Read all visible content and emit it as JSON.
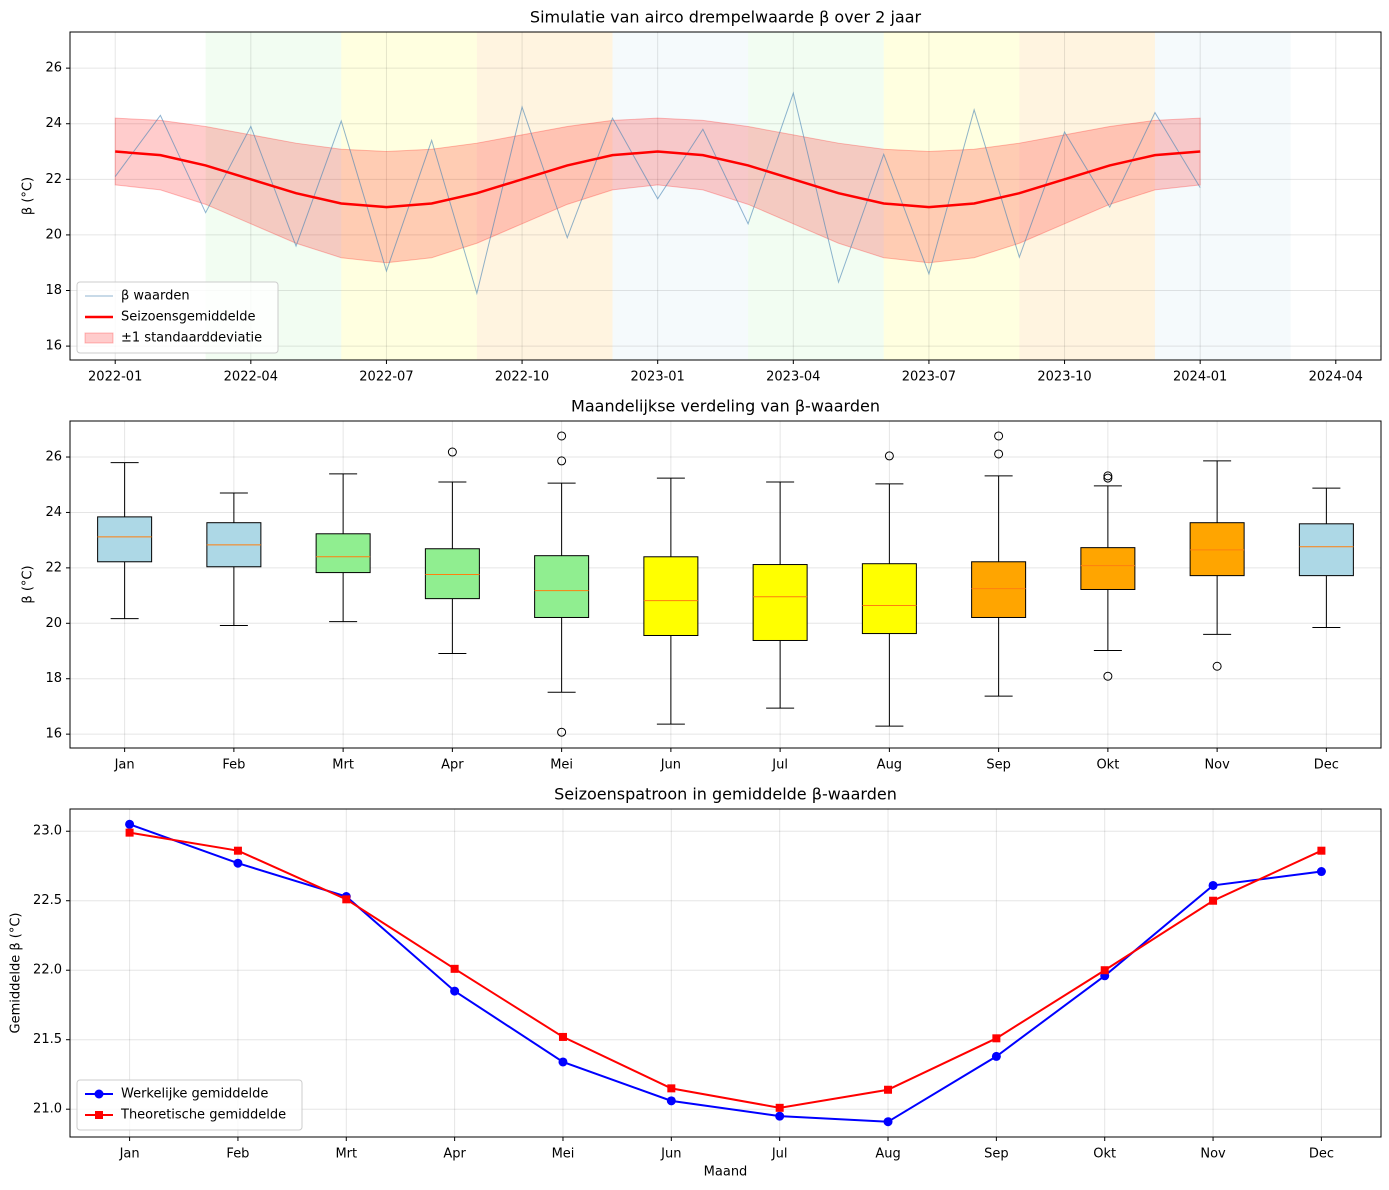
{
  "chart_data": [
    {
      "type": "line",
      "title": "Simulatie van airco drempelwaarde β over 2 jaar",
      "ylabel": "β (°C)",
      "x": [
        "2022-01",
        "2022-02",
        "2022-03",
        "2022-04",
        "2022-05",
        "2022-06",
        "2022-07",
        "2022-08",
        "2022-09",
        "2022-10",
        "2022-11",
        "2022-12",
        "2023-01",
        "2023-02",
        "2023-03",
        "2023-04",
        "2023-05",
        "2023-06",
        "2023-07",
        "2023-08",
        "2023-09",
        "2023-10",
        "2023-11",
        "2023-12",
        "2024-01"
      ],
      "series": [
        {
          "name": "β waarden",
          "color": "#4682b4",
          "values": [
            22.1,
            24.3,
            20.8,
            23.9,
            19.6,
            24.1,
            18.7,
            23.4,
            17.9,
            24.6,
            19.9,
            24.2,
            21.3,
            23.8,
            20.4,
            25.1,
            18.3,
            22.9,
            18.6,
            24.5,
            19.2,
            23.7,
            21.0,
            24.4,
            21.7
          ]
        },
        {
          "name": "Seizoensgemiddelde",
          "color": "#ff0000",
          "values": [
            23,
            22.87,
            22.5,
            22,
            21.5,
            21.13,
            21,
            21.13,
            21.5,
            22,
            22.5,
            22.87,
            23,
            22.87,
            22.5,
            22,
            21.5,
            21.13,
            21,
            21.13,
            21.5,
            22,
            22.5,
            22.87,
            23
          ]
        }
      ],
      "band": {
        "name": "±1 standaarddeviatie",
        "color": "#ff0000",
        "lower": [
          21.8,
          21.62,
          21.1,
          20.4,
          19.7,
          19.18,
          19,
          19.18,
          19.7,
          20.4,
          21.1,
          21.62,
          21.8,
          21.62,
          21.1,
          20.4,
          19.7,
          19.18,
          19,
          19.18,
          19.7,
          20.4,
          21.1,
          21.62,
          21.8
        ],
        "upper": [
          24.2,
          24.12,
          23.9,
          23.6,
          23.3,
          23.08,
          23,
          23.08,
          23.3,
          23.6,
          23.9,
          24.12,
          24.2,
          24.12,
          23.9,
          23.6,
          23.3,
          23.08,
          23,
          23.08,
          23.3,
          23.6,
          23.9,
          24.12,
          24.2
        ]
      },
      "spans": [
        {
          "start": "2022-03",
          "end": "2022-06",
          "color": "#90ee90"
        },
        {
          "start": "2022-06",
          "end": "2022-09",
          "color": "#ffff00"
        },
        {
          "start": "2022-09",
          "end": "2022-12",
          "color": "#ffa500"
        },
        {
          "start": "2022-12",
          "end": "2023-03",
          "color": "#add8e6"
        },
        {
          "start": "2023-03",
          "end": "2023-06",
          "color": "#90ee90"
        },
        {
          "start": "2023-06",
          "end": "2023-09",
          "color": "#ffff00"
        },
        {
          "start": "2023-09",
          "end": "2023-12",
          "color": "#ffa500"
        },
        {
          "start": "2023-12",
          "end": "2024-03",
          "color": "#add8e6"
        }
      ],
      "xlim": [
        "2021-12",
        "2024-05"
      ],
      "xticks": [
        "2022-01",
        "2022-04",
        "2022-07",
        "2022-10",
        "2023-01",
        "2023-04",
        "2023-07",
        "2023-10",
        "2024-01",
        "2024-04"
      ],
      "ylim": [
        15.5,
        27.3
      ],
      "yticks": [
        16,
        18,
        20,
        22,
        24,
        26
      ],
      "grid": true,
      "legend": "lower left"
    },
    {
      "type": "box",
      "title": "Maandelijkse verdeling van β-waarden",
      "ylabel": "β (°C)",
      "categories": [
        "Jan",
        "Feb",
        "Mrt",
        "Apr",
        "Mei",
        "Jun",
        "Jul",
        "Aug",
        "Sep",
        "Okt",
        "Nov",
        "Dec"
      ],
      "boxes": [
        {
          "whislo": 20.17,
          "q1": 22.22,
          "med": 23.12,
          "q3": 23.84,
          "whishi": 25.8,
          "fliers": [],
          "color": "#add8e6"
        },
        {
          "whislo": 19.92,
          "q1": 22.04,
          "med": 22.83,
          "q3": 23.63,
          "whishi": 24.7,
          "fliers": [],
          "color": "#add8e6"
        },
        {
          "whislo": 20.06,
          "q1": 21.83,
          "med": 22.4,
          "q3": 23.23,
          "whishi": 25.39,
          "fliers": [],
          "color": "#90ee90"
        },
        {
          "whislo": 18.91,
          "q1": 20.89,
          "med": 21.76,
          "q3": 22.69,
          "whishi": 25.1,
          "fliers": [
            26.18
          ],
          "color": "#90ee90"
        },
        {
          "whislo": 17.51,
          "q1": 20.21,
          "med": 21.18,
          "q3": 22.44,
          "whishi": 25.06,
          "fliers": [
            26.76,
            25.86,
            16.07
          ],
          "color": "#90ee90"
        },
        {
          "whislo": 16.36,
          "q1": 19.56,
          "med": 20.82,
          "q3": 22.4,
          "whishi": 25.24,
          "fliers": [],
          "color": "#ffff00"
        },
        {
          "whislo": 16.94,
          "q1": 19.38,
          "med": 20.96,
          "q3": 22.12,
          "whishi": 25.1,
          "fliers": [],
          "color": "#ffff00"
        },
        {
          "whislo": 16.29,
          "q1": 19.63,
          "med": 20.64,
          "q3": 22.15,
          "whishi": 25.03,
          "fliers": [
            26.04
          ],
          "color": "#ffff00"
        },
        {
          "whislo": 17.37,
          "q1": 20.21,
          "med": 21.25,
          "q3": 22.22,
          "whishi": 25.32,
          "fliers": [
            26.76,
            26.11
          ],
          "color": "#ffa500"
        },
        {
          "whislo": 19.02,
          "q1": 21.22,
          "med": 22.08,
          "q3": 22.73,
          "whishi": 24.96,
          "fliers": [
            25.32,
            25.24,
            18.09
          ],
          "color": "#ffa500"
        },
        {
          "whislo": 19.6,
          "q1": 21.72,
          "med": 22.65,
          "q3": 23.63,
          "whishi": 25.86,
          "fliers": [
            18.45
          ],
          "color": "#ffa500"
        },
        {
          "whislo": 19.85,
          "q1": 21.72,
          "med": 22.76,
          "q3": 23.59,
          "whishi": 24.88,
          "fliers": [],
          "color": "#add8e6"
        }
      ],
      "ylim": [
        15.5,
        27.3
      ],
      "yticks": [
        16,
        18,
        20,
        22,
        24,
        26
      ],
      "grid": true
    },
    {
      "type": "line",
      "title": "Seizoenspatroon in gemiddelde β-waarden",
      "xlabel": "Maand",
      "ylabel": "Gemiddelde β (°C)",
      "categories": [
        "Jan",
        "Feb",
        "Mrt",
        "Apr",
        "Mei",
        "Jun",
        "Jul",
        "Aug",
        "Sep",
        "Okt",
        "Nov",
        "Dec"
      ],
      "series": [
        {
          "name": "Werkelijke gemiddelde",
          "color": "#0000ff",
          "marker": "circle",
          "values": [
            23.05,
            22.77,
            22.53,
            21.85,
            21.34,
            21.06,
            20.95,
            20.91,
            21.38,
            21.96,
            22.61,
            22.71
          ]
        },
        {
          "name": "Theoretische gemiddelde",
          "color": "#ff0000",
          "marker": "square",
          "values": [
            22.99,
            22.86,
            22.51,
            22.01,
            21.52,
            21.15,
            21.01,
            21.14,
            21.51,
            22.0,
            22.5,
            22.86
          ]
        }
      ],
      "ylim": [
        20.8,
        23.16
      ],
      "yticks": [
        {
          "value": 21,
          "label": "21.0"
        },
        21.5,
        {
          "value": 22,
          "label": "22.0"
        },
        22.5,
        {
          "value": 23,
          "label": "23.0"
        }
      ],
      "grid": true,
      "legend": "lower left"
    }
  ]
}
